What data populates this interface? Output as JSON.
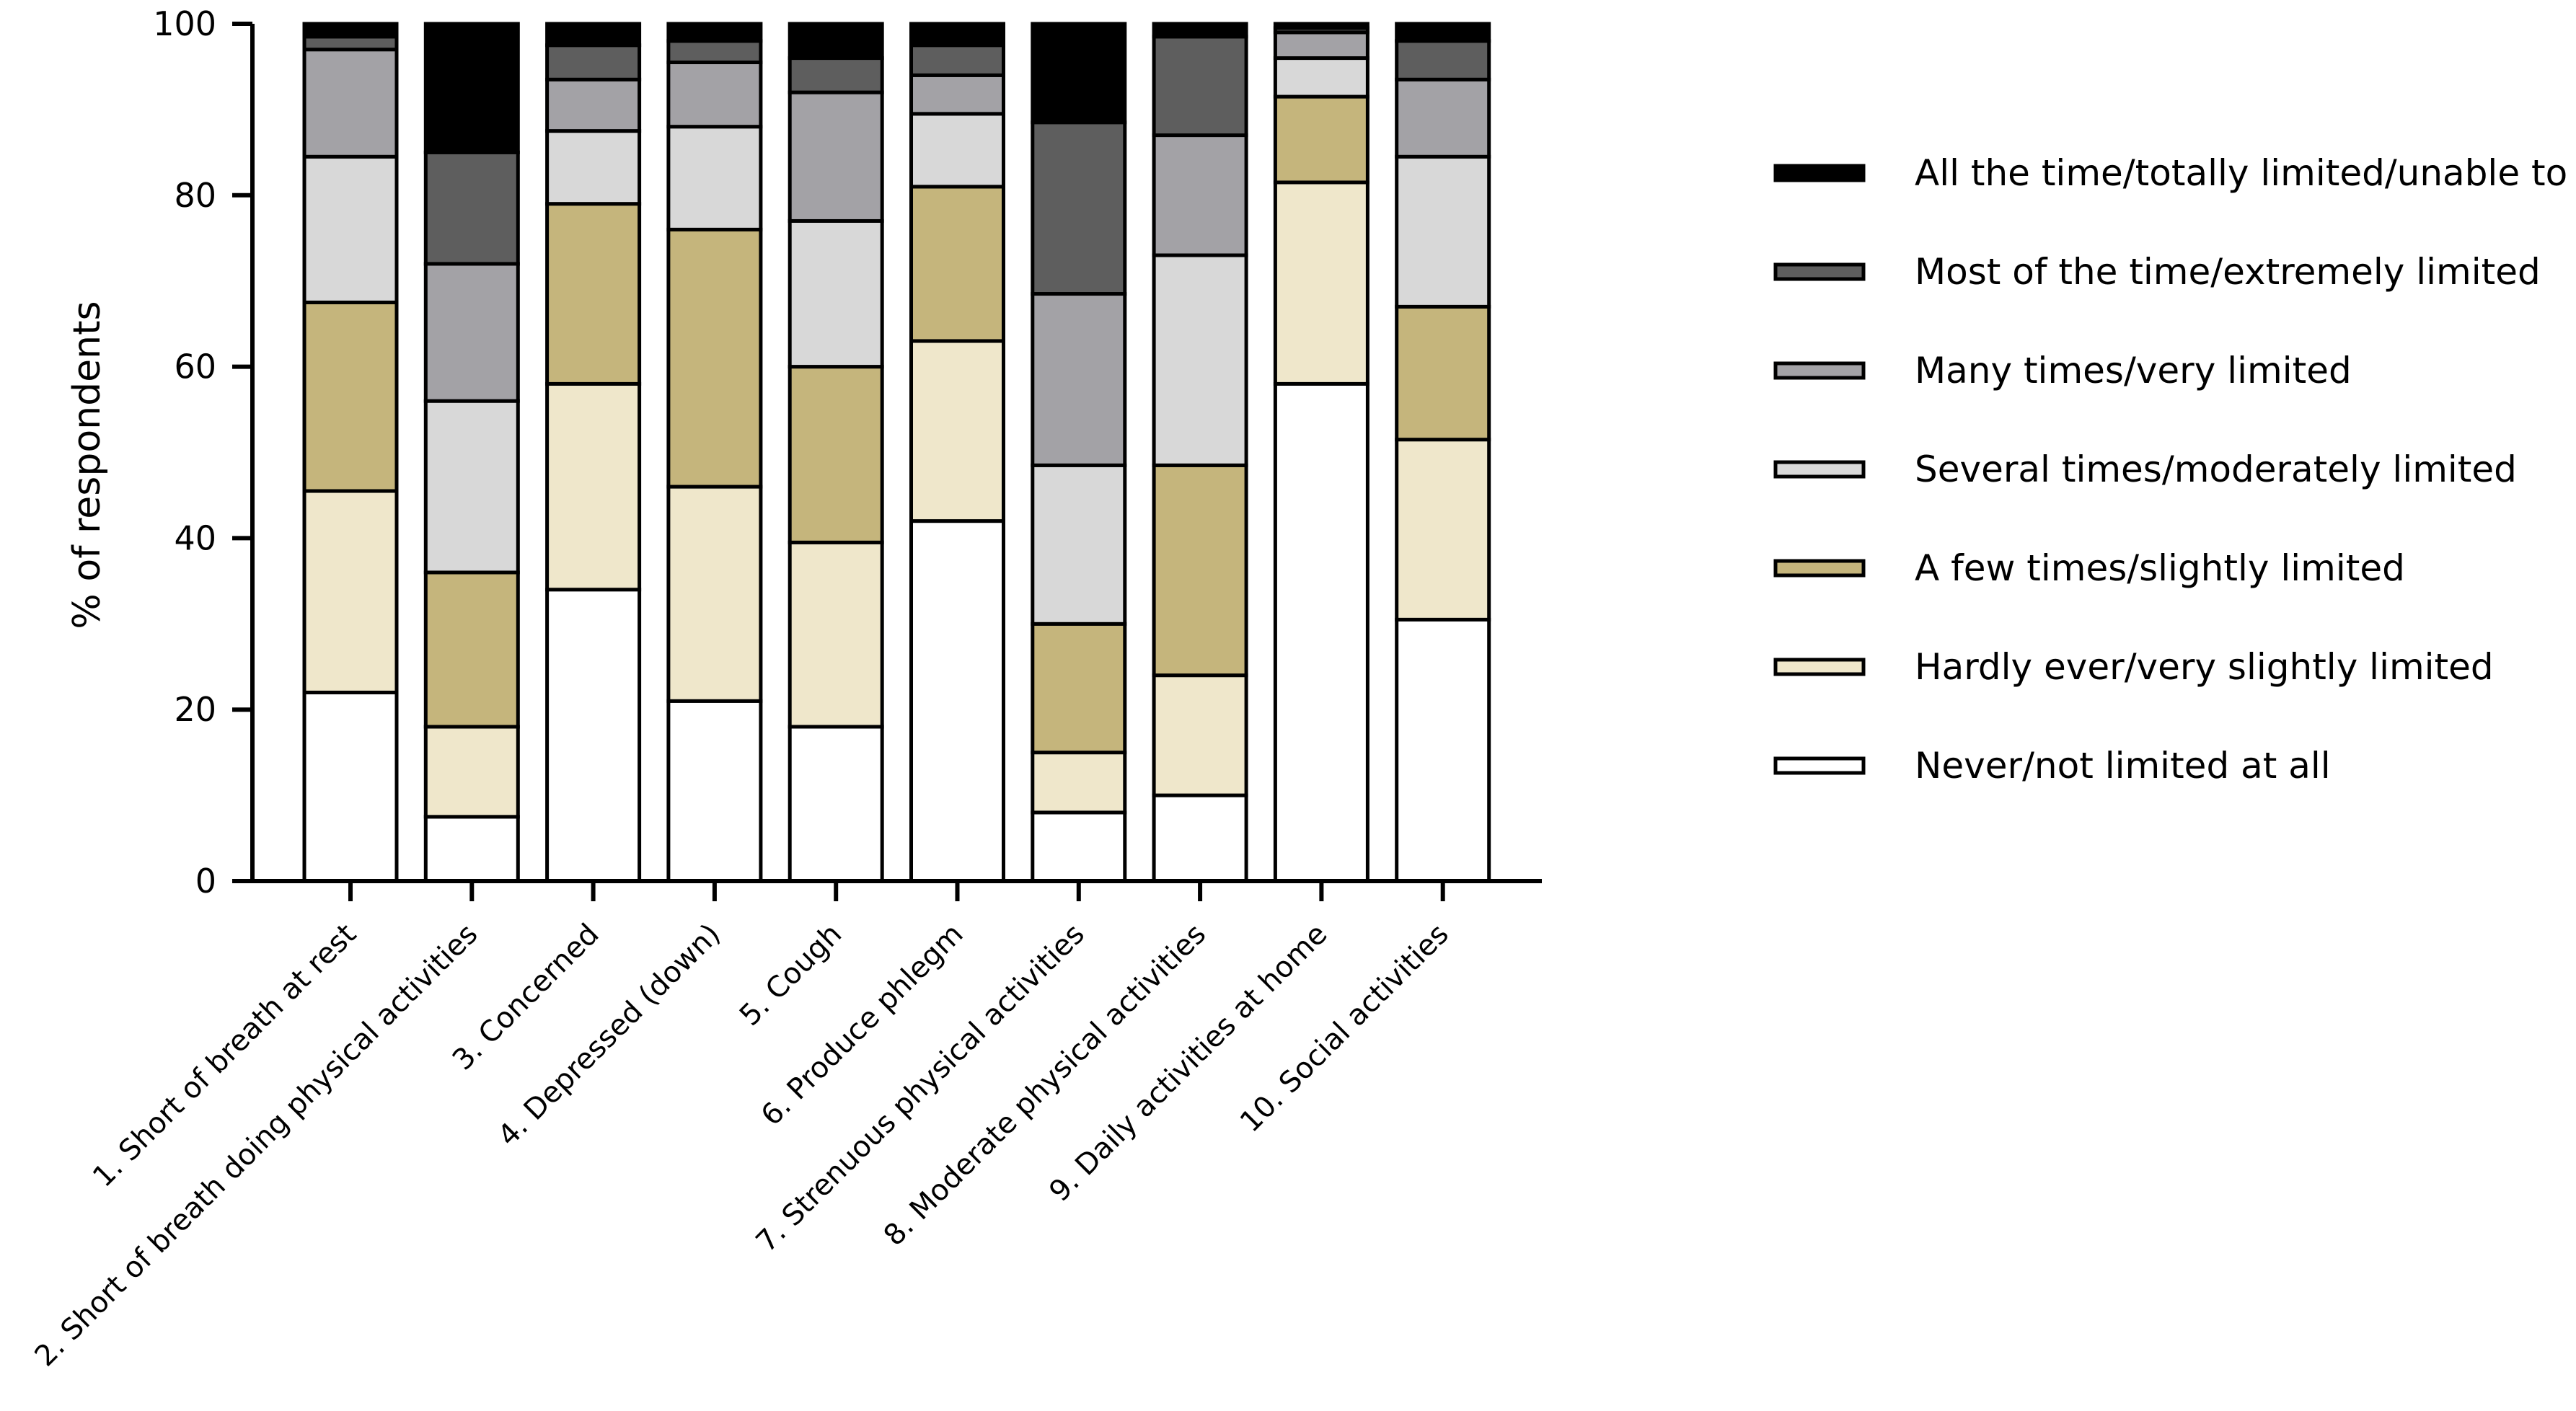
{
  "chart_data": {
    "type": "bar",
    "stacked": true,
    "title": "",
    "xlabel": "",
    "ylabel": "% of respondents",
    "ylim": [
      0,
      100
    ],
    "yticks": [
      0,
      20,
      40,
      60,
      80,
      100
    ],
    "grid": false,
    "legend_position": "right",
    "categories": [
      "1. Short of breath at rest",
      "2. Short of breath doing physical activities",
      "3. Concerned",
      "4. Depressed (down)",
      "5. Cough",
      "6. Produce phlegm",
      "7. Strenuous physical activities",
      "8. Moderate physical activities",
      "9. Daily activities at home",
      "10. Social activities"
    ],
    "series": [
      {
        "name": "Never/not limited at all",
        "color": "#ffffff",
        "values": [
          22,
          7.5,
          34,
          21,
          18,
          42,
          8,
          10,
          58,
          30.5
        ]
      },
      {
        "name": "Hardly ever/very slightly limited",
        "color": "#efe7cb",
        "values": [
          23.5,
          10.5,
          24,
          25,
          21.5,
          21,
          7,
          14,
          23.5,
          21
        ]
      },
      {
        "name": "A few times/slightly limited",
        "color": "#c5b57c",
        "values": [
          22,
          18,
          21,
          30,
          20.5,
          18,
          15,
          24.5,
          10,
          15.5
        ]
      },
      {
        "name": "Several times/moderately limited",
        "color": "#d8d8d8",
        "values": [
          17,
          20,
          8.5,
          12,
          17,
          8.5,
          18.5,
          24.5,
          4.5,
          17.5
        ]
      },
      {
        "name": "Many times/very limited",
        "color": "#a3a2a6",
        "values": [
          12.5,
          16,
          6,
          7.5,
          15,
          4.5,
          20,
          14,
          3,
          9
        ]
      },
      {
        "name": "Most of the time/extremely limited",
        "color": "#5e5e5e",
        "values": [
          1.5,
          13,
          4,
          2.5,
          4,
          3.5,
          20,
          11.5,
          0.5,
          4.5
        ]
      },
      {
        "name": "All the time/totally limited/unable to",
        "color": "#000000",
        "values": [
          1.5,
          15,
          2.5,
          2,
          4,
          2.5,
          11.5,
          1.5,
          0.5,
          2
        ]
      }
    ]
  }
}
